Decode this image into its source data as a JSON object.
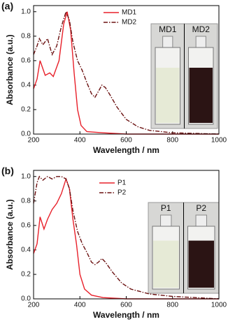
{
  "chart_data": [
    {
      "type": "line",
      "panel_label": "(a)",
      "xlabel": "Wavelength / nm",
      "ylabel": "Absorbance (a.u.)",
      "xlim": [
        200,
        1000
      ],
      "xticks": [
        200,
        400,
        600,
        800,
        1000
      ],
      "ylim": [
        0,
        1.05
      ],
      "yticks": [
        {
          "value": 0,
          "label": "0.0"
        },
        0.2,
        0.4,
        0.6,
        0.8,
        {
          "value": 1,
          "label": "1.0"
        }
      ],
      "legend": "upper center",
      "inset_labels": [
        "MD1",
        "MD2"
      ],
      "series": [
        {
          "name": "MD1",
          "color": "#e8202a",
          "dash": "solid",
          "x": [
            200,
            215,
            228,
            250,
            270,
            285,
            310,
            330,
            345,
            360,
            375,
            390,
            405,
            430,
            500,
            600,
            1000
          ],
          "values": [
            0.37,
            0.45,
            0.6,
            0.48,
            0.5,
            0.47,
            0.6,
            0.9,
            1.0,
            0.85,
            0.5,
            0.2,
            0.07,
            0.02,
            0.01,
            0,
            0
          ]
        },
        {
          "name": "MD2",
          "color": "#6b1010",
          "dash": "dashdot",
          "x": [
            200,
            215,
            225,
            240,
            260,
            280,
            300,
            320,
            340,
            355,
            370,
            390,
            410,
            430,
            450,
            465,
            480,
            495,
            510,
            530,
            560,
            600,
            650,
            700,
            800,
            1000
          ],
          "values": [
            0.65,
            0.72,
            0.78,
            0.73,
            0.78,
            0.65,
            0.72,
            0.88,
            1.0,
            0.93,
            0.75,
            0.6,
            0.52,
            0.42,
            0.33,
            0.3,
            0.35,
            0.4,
            0.38,
            0.32,
            0.22,
            0.12,
            0.06,
            0.03,
            0.01,
            0
          ]
        }
      ]
    },
    {
      "type": "line",
      "panel_label": "(b)",
      "xlabel": "Wavelength / nm",
      "ylabel": "Absorbance (a.u.)",
      "xlim": [
        200,
        1000
      ],
      "xticks": [
        200,
        400,
        600,
        800,
        1000
      ],
      "ylim": [
        0,
        1.05
      ],
      "yticks": [
        {
          "value": 0,
          "label": "0.0"
        },
        0.2,
        0.4,
        0.6,
        0.8,
        {
          "value": 1,
          "label": "1.0"
        }
      ],
      "legend": "upper center",
      "inset_labels": [
        "P1",
        "P2"
      ],
      "series": [
        {
          "name": "P1",
          "color": "#e8202a",
          "dash": "solid",
          "x": [
            200,
            215,
            228,
            245,
            260,
            280,
            300,
            320,
            340,
            355,
            370,
            385,
            400,
            420,
            450,
            500,
            600,
            1000
          ],
          "values": [
            0.37,
            0.45,
            0.67,
            0.57,
            0.65,
            0.73,
            0.78,
            0.86,
            0.98,
            0.9,
            0.65,
            0.45,
            0.2,
            0.08,
            0.03,
            0.01,
            0,
            0
          ]
        },
        {
          "name": "P2",
          "color": "#6b1010",
          "dash": "dashdot",
          "x": [
            200,
            215,
            225,
            240,
            260,
            280,
            300,
            320,
            340,
            355,
            370,
            390,
            410,
            430,
            450,
            465,
            480,
            495,
            510,
            540,
            580,
            620,
            700,
            800,
            900,
            1000
          ],
          "values": [
            0.78,
            0.95,
            1.0,
            0.97,
            1.0,
            0.98,
            1.0,
            1.0,
            0.98,
            0.9,
            0.72,
            0.55,
            0.45,
            0.38,
            0.3,
            0.28,
            0.3,
            0.33,
            0.3,
            0.22,
            0.13,
            0.08,
            0.04,
            0.02,
            0.01,
            0
          ]
        }
      ]
    }
  ]
}
